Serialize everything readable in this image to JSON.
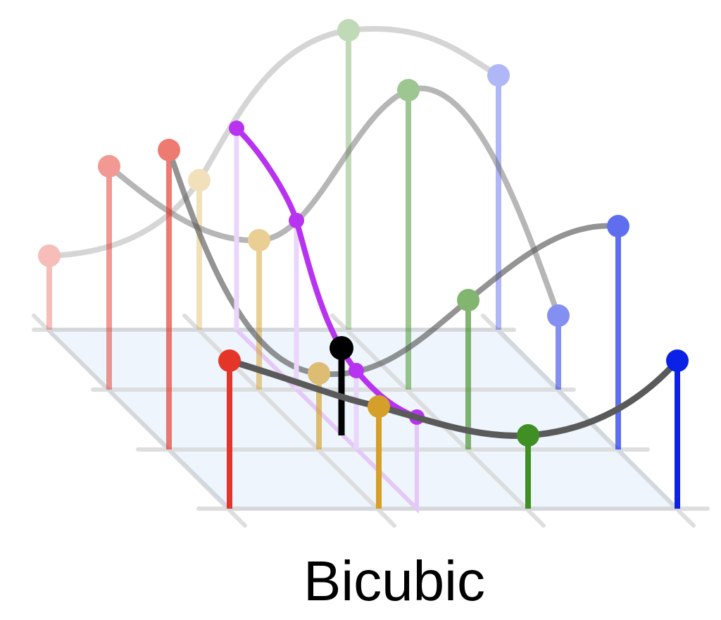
{
  "caption": "Bicubic",
  "colors": {
    "grid_fill": "#e8f1fb",
    "grid_edge": "#a9cbe6",
    "grid_line": "#d9d9d9",
    "curve": "#555555",
    "curve_faded": "#bdbdbd",
    "interp_curve": "#b833f0",
    "result": "#000000",
    "red": "#e53528",
    "gold": "#d4a02a",
    "green": "#3f8f24",
    "blue": "#0b22e6"
  }
}
